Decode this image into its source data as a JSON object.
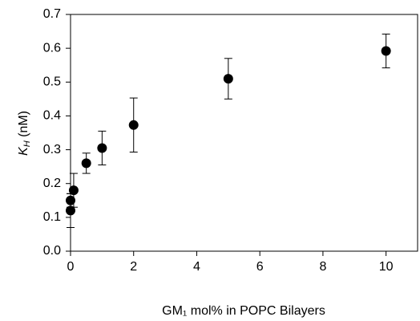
{
  "chart_data": {
    "type": "scatter",
    "x_label": "GM₁ mol% in POPC Bilayers",
    "y_label": {
      "main": "K",
      "sub": "H",
      "rest": " (nM)"
    },
    "series": [
      {
        "color": "#000000",
        "x": [
          0,
          0,
          0.1,
          0.5,
          1,
          2,
          5,
          10
        ],
        "values": [
          0.12,
          0.15,
          0.18,
          0.26,
          0.305,
          0.373,
          0.51,
          0.592
        ],
        "errors": [
          0.05,
          0.02,
          0.05,
          0.03,
          0.05,
          0.08,
          0.06,
          0.05
        ]
      }
    ],
    "xlim": [
      0,
      11
    ],
    "xticks": [
      0,
      2,
      4,
      6,
      8,
      10
    ],
    "ylim": [
      0,
      0.7
    ],
    "yticks": [
      {
        "value": 0,
        "label": "0.0"
      },
      0.1,
      0.2,
      0.3,
      0.4,
      0.5,
      0.6,
      0.7
    ]
  }
}
